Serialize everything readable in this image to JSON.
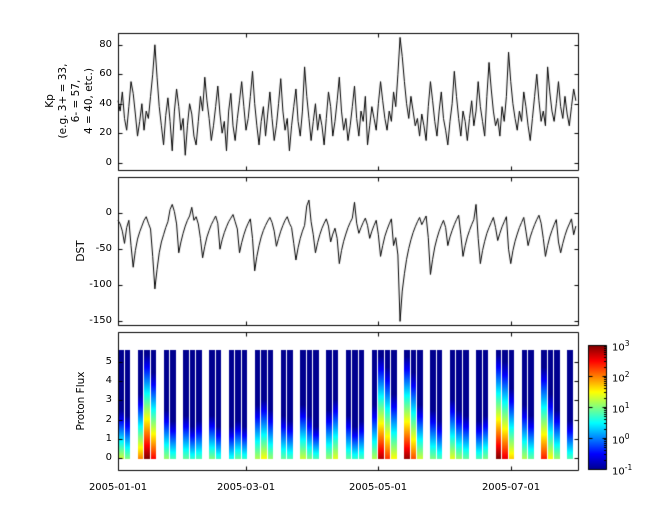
{
  "figure": {
    "background": "#ffffff",
    "line_color": "#000000",
    "frame_color": "#000000"
  },
  "window_icon_name": "mini-axes-icon",
  "xaxis": {
    "tick_labels": [
      "2005-01-01",
      "2005-03-01",
      "2005-05-01",
      "2005-07-01"
    ],
    "tick_days": [
      0,
      59,
      120,
      181
    ],
    "total_days": 212
  },
  "chart_data": [
    {
      "type": "line",
      "name": "kp-index",
      "ylabel_lines": [
        "Kp",
        "(e.g. 3+ = 33,",
        "6- = 57,",
        "4 = 40, etc.)"
      ],
      "yticks": [
        0,
        20,
        40,
        60,
        80
      ],
      "ylim": [
        -5,
        88
      ],
      "values": [
        42,
        35,
        48,
        30,
        22,
        38,
        55,
        47,
        33,
        18,
        28,
        40,
        22,
        35,
        30,
        45,
        60,
        80,
        58,
        38,
        25,
        12,
        32,
        44,
        28,
        8,
        35,
        50,
        38,
        22,
        30,
        5,
        25,
        40,
        33,
        18,
        12,
        28,
        45,
        35,
        58,
        42,
        30,
        15,
        25,
        38,
        52,
        33,
        20,
        28,
        8,
        35,
        47,
        25,
        15,
        30,
        42,
        55,
        38,
        22,
        30,
        45,
        62,
        40,
        25,
        12,
        28,
        38,
        18,
        33,
        48,
        30,
        15,
        25,
        40,
        57,
        35,
        22,
        30,
        8,
        25,
        38,
        50,
        28,
        18,
        35,
        65,
        45,
        30,
        15,
        28,
        40,
        22,
        33,
        25,
        12,
        30,
        48,
        38,
        18,
        28,
        42,
        58,
        35,
        22,
        30,
        15,
        25,
        38,
        52,
        30,
        18,
        35,
        28,
        45,
        12,
        25,
        38,
        30,
        22,
        40,
        55,
        42,
        30,
        22,
        35,
        28,
        48,
        38,
        60,
        85,
        72,
        55,
        40,
        30,
        45,
        35,
        25,
        30,
        18,
        33,
        25,
        15,
        38,
        55,
        42,
        28,
        18,
        35,
        48,
        30,
        22,
        12,
        28,
        40,
        62,
        45,
        30,
        18,
        35,
        28,
        15,
        30,
        42,
        25,
        35,
        55,
        38,
        28,
        18,
        45,
        68,
        50,
        35,
        25,
        30,
        18,
        38,
        28,
        45,
        75,
        55,
        40,
        30,
        22,
        35,
        28,
        48,
        38,
        25,
        15,
        30,
        45,
        60,
        42,
        28,
        35,
        25,
        65,
        48,
        35,
        28,
        40,
        55,
        38,
        30,
        45,
        33,
        25,
        38,
        50,
        42
      ]
    },
    {
      "type": "line",
      "name": "dst-index",
      "ylabel": "DST",
      "yticks": [
        0,
        -50,
        -100,
        -150
      ],
      "ylim": [
        -155,
        50
      ],
      "values": [
        -10,
        -15,
        -25,
        -42,
        -20,
        -10,
        -45,
        -75,
        -52,
        -36,
        -26,
        -18,
        -10,
        -5,
        -14,
        -22,
        -60,
        -105,
        -78,
        -55,
        -40,
        -30,
        -20,
        -12,
        5,
        12,
        2,
        -15,
        -55,
        -40,
        -28,
        -18,
        -10,
        -4,
        8,
        -10,
        -5,
        -15,
        -35,
        -62,
        -46,
        -33,
        -24,
        -16,
        -10,
        -4,
        -14,
        -50,
        -37,
        -27,
        -19,
        -12,
        -7,
        -2,
        -12,
        -22,
        -55,
        -41,
        -30,
        -21,
        -14,
        -8,
        -35,
        -80,
        -60,
        -45,
        -33,
        -24,
        -17,
        -11,
        -6,
        -13,
        -25,
        -46,
        -35,
        -25,
        -17,
        -10,
        -5,
        -14,
        -20,
        -42,
        -65,
        -48,
        -35,
        -25,
        -17,
        10,
        18,
        -12,
        -30,
        -55,
        -41,
        -30,
        -21,
        -14,
        -8,
        -18,
        -40,
        -29,
        -21,
        -35,
        -70,
        -52,
        -39,
        -29,
        -20,
        -13,
        -7,
        15,
        -14,
        -28,
        -20,
        -13,
        -7,
        -17,
        -35,
        -25,
        -17,
        -10,
        -30,
        -60,
        -45,
        -32,
        -23,
        -15,
        -8,
        -45,
        -34,
        -58,
        -150,
        -108,
        -84,
        -64,
        -49,
        -37,
        -27,
        -19,
        -12,
        -6,
        -16,
        -10,
        -4,
        -34,
        -85,
        -64,
        -47,
        -35,
        -25,
        -17,
        -10,
        -20,
        -45,
        -33,
        -24,
        -16,
        -9,
        -3,
        -30,
        -60,
        -45,
        -33,
        -24,
        -16,
        -9,
        12,
        -35,
        -70,
        -52,
        -39,
        -28,
        -20,
        -13,
        -6,
        -20,
        -38,
        -28,
        -19,
        -12,
        -5,
        -50,
        -70,
        -52,
        -39,
        -29,
        -20,
        -13,
        -6,
        -25,
        -45,
        -33,
        -24,
        -16,
        -9,
        -3,
        -14,
        -35,
        -60,
        -45,
        -33,
        -24,
        -16,
        -9,
        -40,
        -55,
        -42,
        -31,
        -22,
        -15,
        -8,
        -30,
        -18
      ]
    },
    {
      "type": "heatmap",
      "name": "proton-flux",
      "ylabel": "Proton Flux",
      "yticks": [
        0,
        1,
        2,
        3,
        4,
        5
      ],
      "ylim": [
        -0.62,
        6.56
      ],
      "data_ytop": 5.6,
      "days_per_column": 3,
      "value_scale": "log10",
      "value_range_log10": [
        -1,
        3
      ],
      "columns": [
        [
          1.3,
          0.45
        ],
        [
          1.0,
          0.4
        ],
        null,
        [
          2.0,
          0.6
        ],
        [
          3.0,
          0.97
        ],
        [
          2.5,
          0.8
        ],
        null,
        [
          1.1,
          0.45
        ],
        [
          0.8,
          0.35
        ],
        null,
        [
          0.9,
          0.4
        ],
        [
          0.7,
          0.3
        ],
        [
          0.8,
          0.35
        ],
        null,
        [
          1.0,
          0.4
        ],
        [
          0.7,
          0.3
        ],
        null,
        [
          0.6,
          0.3
        ],
        [
          0.9,
          0.35
        ],
        [
          0.7,
          0.3
        ],
        null,
        [
          1.2,
          0.5
        ],
        [
          1.5,
          0.55
        ],
        [
          1.1,
          0.45
        ],
        null,
        [
          0.9,
          0.4
        ],
        [
          0.8,
          0.35
        ],
        null,
        [
          1.3,
          0.5
        ],
        [
          1.0,
          0.4
        ],
        [
          0.8,
          0.3
        ],
        null,
        [
          1.1,
          0.45
        ],
        [
          1.4,
          0.55
        ],
        null,
        [
          0.9,
          0.4
        ],
        [
          0.7,
          0.3
        ],
        [
          0.8,
          0.35
        ],
        null,
        [
          1.2,
          0.5
        ],
        [
          2.8,
          0.95
        ],
        [
          2.3,
          0.85
        ],
        [
          1.5,
          0.6
        ],
        null,
        [
          2.9,
          0.95
        ],
        [
          2.2,
          0.8
        ],
        [
          1.3,
          0.5
        ],
        null,
        [
          1.0,
          0.45
        ],
        [
          0.8,
          0.35
        ],
        null,
        [
          1.4,
          0.55
        ],
        [
          1.1,
          0.45
        ],
        [
          0.9,
          0.4
        ],
        null,
        [
          0.8,
          0.35
        ],
        [
          1.0,
          0.4
        ],
        null,
        [
          3.0,
          0.97
        ],
        [
          2.6,
          0.9
        ],
        [
          1.7,
          0.65
        ],
        null,
        [
          1.2,
          0.5
        ],
        [
          0.9,
          0.4
        ],
        null,
        [
          2.4,
          0.85
        ],
        [
          1.5,
          0.6
        ],
        [
          1.1,
          0.45
        ],
        null,
        [
          0.8,
          0.35
        ]
      ],
      "colorbar": {
        "base": "10",
        "tick_exponents": [
          3,
          2,
          1,
          0,
          -1
        ],
        "colormap": "jet"
      }
    }
  ]
}
